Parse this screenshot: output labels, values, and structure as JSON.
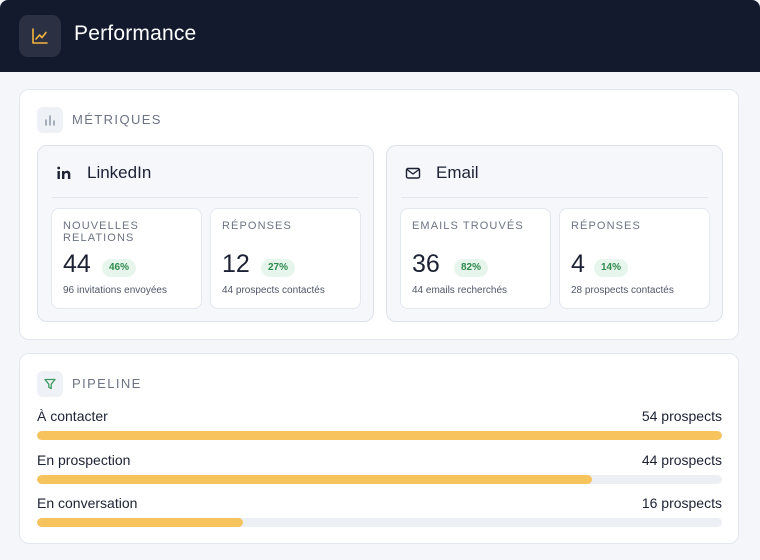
{
  "header": {
    "title": "Performance",
    "icon": "line-chart-icon"
  },
  "metrics": {
    "section_label": "MÉTRIQUES",
    "section_icon": "bar-chart-icon",
    "channels": [
      {
        "name": "LinkedIn",
        "icon": "linkedin-icon",
        "cards": [
          {
            "label": "NOUVELLES RELATIONS",
            "value": "44",
            "badge": "46%",
            "sub": "96 invitations envoyées"
          },
          {
            "label": "RÉPONSES",
            "value": "12",
            "badge": "27%",
            "sub": "44 prospects contactés"
          }
        ]
      },
      {
        "name": "Email",
        "icon": "mail-icon",
        "cards": [
          {
            "label": "EMAILS TROUVÉS",
            "value": "36",
            "badge": "82%",
            "sub": "44 emails recherchés"
          },
          {
            "label": "RÉPONSES",
            "value": "4",
            "badge": "14%",
            "sub": "28 prospects contactés"
          }
        ]
      }
    ]
  },
  "pipeline": {
    "section_label": "PIPELINE",
    "section_icon": "filter-icon",
    "rows": [
      {
        "label": "À contacter",
        "count": "54 prospects",
        "fill": 1.0
      },
      {
        "label": "En prospection",
        "count": "44 prospects",
        "fill": 0.81
      },
      {
        "label": "En conversation",
        "count": "16 prospects",
        "fill": 0.3
      }
    ]
  },
  "colors": {
    "header_bg": "#131a2e",
    "bar_fill": "#f6c35d",
    "bar_track": "#eceff3",
    "badge_bg": "#e7f6ec",
    "badge_text": "#2f8a4f",
    "header_icon_accent": "#f5b43c"
  }
}
